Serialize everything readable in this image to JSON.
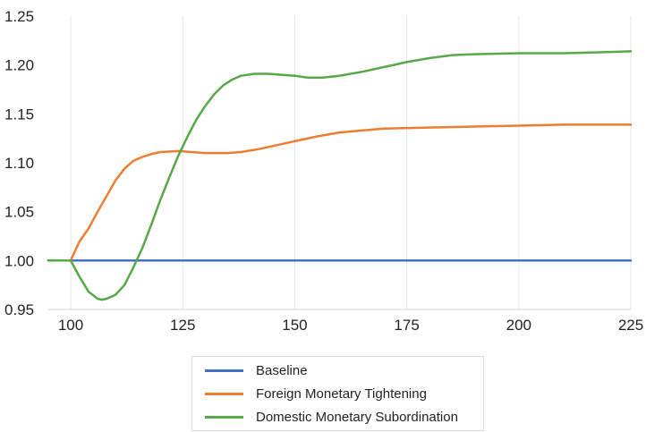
{
  "chart_data": {
    "type": "line",
    "title": "",
    "xlabel": "",
    "ylabel": "",
    "xlim": [
      95,
      225
    ],
    "ylim": [
      0.95,
      1.25
    ],
    "xticks": [
      100,
      125,
      150,
      175,
      200,
      225
    ],
    "yticks": [
      "0.95",
      "1.00",
      "1.05",
      "1.10",
      "1.15",
      "1.20",
      "1.25"
    ],
    "grid": "vertical gridlines",
    "legend_position": "bottom",
    "series": [
      {
        "name": "Baseline",
        "color": "#4472c4",
        "points": [
          [
            95,
            1.0
          ],
          [
            225,
            1.0
          ]
        ]
      },
      {
        "name": "Foreign Monetary Tightening",
        "color": "#ed7d31",
        "points": [
          [
            95,
            1.0
          ],
          [
            100,
            1.0
          ],
          [
            101,
            1.01
          ],
          [
            102,
            1.02
          ],
          [
            104,
            1.033
          ],
          [
            106,
            1.05
          ],
          [
            108,
            1.066
          ],
          [
            110,
            1.082
          ],
          [
            112,
            1.094
          ],
          [
            114,
            1.102
          ],
          [
            116,
            1.106
          ],
          [
            118,
            1.109
          ],
          [
            120,
            1.111
          ],
          [
            124,
            1.112
          ],
          [
            127,
            1.111
          ],
          [
            130,
            1.11
          ],
          [
            135,
            1.11
          ],
          [
            138,
            1.111
          ],
          [
            142,
            1.114
          ],
          [
            146,
            1.118
          ],
          [
            150,
            1.122
          ],
          [
            155,
            1.127
          ],
          [
            160,
            1.131
          ],
          [
            165,
            1.133
          ],
          [
            170,
            1.135
          ],
          [
            180,
            1.136
          ],
          [
            190,
            1.137
          ],
          [
            200,
            1.138
          ],
          [
            210,
            1.139
          ],
          [
            225,
            1.139
          ]
        ]
      },
      {
        "name": "Domestic Monetary Subordination",
        "color": "#58a84a",
        "points": [
          [
            95,
            1.0
          ],
          [
            100,
            1.0
          ],
          [
            102,
            0.983
          ],
          [
            104,
            0.968
          ],
          [
            106,
            0.961
          ],
          [
            107,
            0.96
          ],
          [
            108,
            0.961
          ],
          [
            110,
            0.965
          ],
          [
            112,
            0.975
          ],
          [
            114,
            0.993
          ],
          [
            116,
            1.013
          ],
          [
            118,
            1.037
          ],
          [
            120,
            1.062
          ],
          [
            122,
            1.085
          ],
          [
            124,
            1.107
          ],
          [
            126,
            1.126
          ],
          [
            128,
            1.144
          ],
          [
            130,
            1.158
          ],
          [
            132,
            1.17
          ],
          [
            134,
            1.179
          ],
          [
            136,
            1.185
          ],
          [
            138,
            1.189
          ],
          [
            141,
            1.191
          ],
          [
            144,
            1.191
          ],
          [
            147,
            1.19
          ],
          [
            150,
            1.189
          ],
          [
            153,
            1.187
          ],
          [
            156,
            1.187
          ],
          [
            160,
            1.189
          ],
          [
            165,
            1.193
          ],
          [
            170,
            1.198
          ],
          [
            175,
            1.203
          ],
          [
            180,
            1.207
          ],
          [
            185,
            1.21
          ],
          [
            190,
            1.211
          ],
          [
            200,
            1.212
          ],
          [
            210,
            1.212
          ],
          [
            218,
            1.213
          ],
          [
            225,
            1.214
          ]
        ]
      }
    ]
  }
}
